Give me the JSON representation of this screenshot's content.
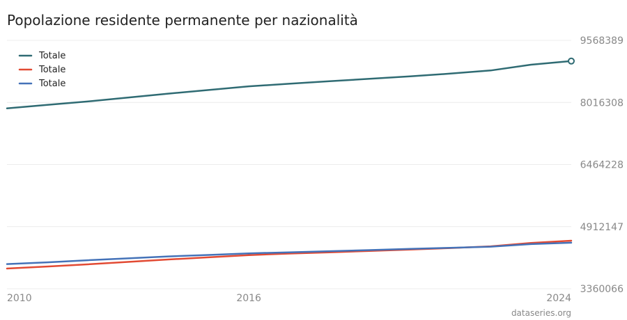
{
  "chart_data": {
    "type": "line",
    "title": "Popolazione residente permanente per nazionalità",
    "xlabel": "",
    "ylabel": "",
    "x_ticks": [
      "2010",
      "2016",
      "2024"
    ],
    "y_ticks": [
      "9568389",
      "8016308",
      "6464228",
      "4912147",
      "3360066"
    ],
    "xlim": [
      2010,
      2024
    ],
    "ylim": [
      3360066,
      9568389
    ],
    "grid": true,
    "legend_position": "top-left",
    "x": [
      2010,
      2011,
      2012,
      2013,
      2014,
      2015,
      2016,
      2017,
      2018,
      2019,
      2020,
      2021,
      2022,
      2023,
      2024
    ],
    "series": [
      {
        "name": "Totale",
        "color": "#2f6b73",
        "values": [
          7870000,
          7955000,
          8039000,
          8139000,
          8237000,
          8327000,
          8419000,
          8484000,
          8545000,
          8606000,
          8670000,
          8738000,
          8815000,
          8960000,
          9050000
        ]
      },
      {
        "name": "Totale",
        "color": "#e24a33",
        "values": [
          3865000,
          3915000,
          3968000,
          4030000,
          4090000,
          4145000,
          4200000,
          4238000,
          4270000,
          4305000,
          4340000,
          4375000,
          4420000,
          4505000,
          4560000
        ]
      },
      {
        "name": "Totale",
        "color": "#4472b8",
        "values": [
          3975000,
          4020000,
          4071000,
          4119000,
          4167000,
          4203000,
          4243000,
          4269000,
          4298000,
          4325000,
          4354000,
          4382000,
          4410000,
          4475000,
          4510000
        ]
      }
    ]
  },
  "credit": "dataseries.org"
}
